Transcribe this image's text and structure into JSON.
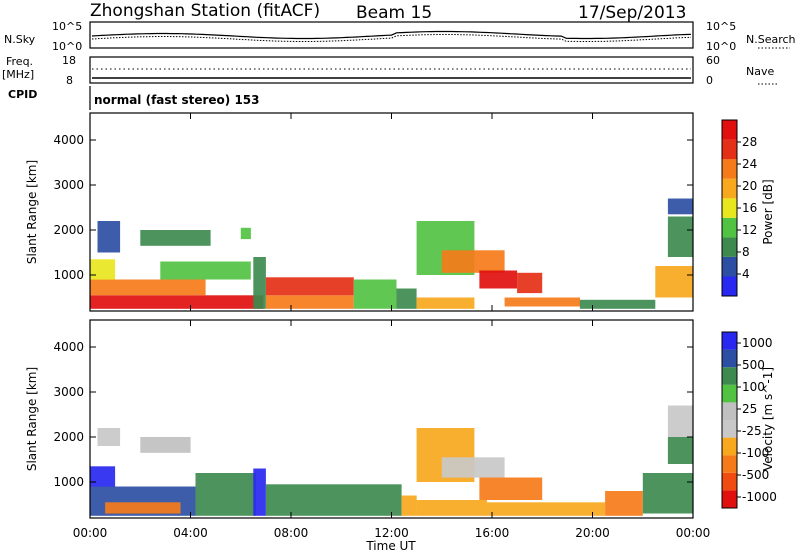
{
  "header": {
    "station": "Zhongshan Station (fitACF)",
    "beam": "Beam 15",
    "date": "17/Sep/2013"
  },
  "top_panels": {
    "nsky_label": "N.Sky",
    "nsky_ticks": [
      "10^5",
      "10^0"
    ],
    "nsearch_label": "N.Search",
    "nsearch_ticks": [
      "10^5",
      "10^0"
    ],
    "freq_label_line1": "Freq.",
    "freq_label_line2": "[MHz]",
    "freq_ticks": [
      "18",
      "8"
    ],
    "nave_label": "Nave",
    "nave_ticks": [
      "60",
      "0"
    ],
    "cpid_label": "CPID",
    "cpid_text": "normal (fast stereo) 153"
  },
  "x_axis": {
    "ticks": [
      "00:00",
      "04:00",
      "08:00",
      "12:00",
      "16:00",
      "20:00",
      "00:00"
    ],
    "tick_hours": [
      0,
      4,
      8,
      12,
      16,
      20,
      24
    ],
    "title": "Time UT"
  },
  "colors": {
    "power": [
      "#2828f0",
      "#2c4fa3",
      "#3d8a4f",
      "#52c243",
      "#e8e61e",
      "#f7a81d",
      "#f57b1a",
      "#e43016",
      "#e0100f"
    ],
    "velocity": [
      "#e0100f",
      "#f04b10",
      "#f57b1a",
      "#f7a81d",
      "#c8c8c8",
      "#c0c0c0",
      "#52c243",
      "#3d8a4f",
      "#2c4fa3",
      "#2828f0"
    ]
  },
  "chart_data": [
    {
      "type": "heatmap",
      "title": "",
      "xlabel": "",
      "ylabel": "Slant Range [km]",
      "xlim": [
        0,
        24
      ],
      "ylim": [
        200,
        4600
      ],
      "yticks": [
        1000,
        2000,
        3000,
        4000
      ],
      "colorbar_label": "Power [dB]",
      "colorbar_ticks": [
        "4",
        "8",
        "12",
        "16",
        "20",
        "24",
        "28"
      ],
      "regions": [
        {
          "t0": 0.0,
          "t1": 6.9,
          "r0": 250,
          "r1": 550,
          "level": 8
        },
        {
          "t0": 0.0,
          "t1": 4.6,
          "r0": 550,
          "r1": 900,
          "level": 6
        },
        {
          "t0": 0.0,
          "t1": 1.0,
          "r0": 900,
          "r1": 1350,
          "level": 4
        },
        {
          "t0": 2.8,
          "t1": 6.4,
          "r0": 900,
          "r1": 1300,
          "level": 3
        },
        {
          "t0": 6.5,
          "t1": 7.0,
          "r0": 250,
          "r1": 1400,
          "level": 2
        },
        {
          "t0": 7.0,
          "t1": 10.5,
          "r0": 250,
          "r1": 550,
          "level": 6
        },
        {
          "t0": 7.0,
          "t1": 10.5,
          "r0": 550,
          "r1": 950,
          "level": 7
        },
        {
          "t0": 10.5,
          "t1": 12.2,
          "r0": 250,
          "r1": 900,
          "level": 3
        },
        {
          "t0": 12.2,
          "t1": 13.0,
          "r0": 250,
          "r1": 700,
          "level": 2
        },
        {
          "t0": 13.0,
          "t1": 15.3,
          "r0": 250,
          "r1": 500,
          "level": 5
        },
        {
          "t0": 13.0,
          "t1": 15.3,
          "r0": 1000,
          "r1": 2200,
          "level": 3
        },
        {
          "t0": 14.0,
          "t1": 16.5,
          "r0": 1050,
          "r1": 1550,
          "level": 6
        },
        {
          "t0": 15.5,
          "t1": 17.0,
          "r0": 700,
          "r1": 1100,
          "level": 8
        },
        {
          "t0": 17.0,
          "t1": 18.0,
          "r0": 600,
          "r1": 1050,
          "level": 7
        },
        {
          "t0": 16.5,
          "t1": 19.5,
          "r0": 300,
          "r1": 500,
          "level": 6
        },
        {
          "t0": 19.5,
          "t1": 22.5,
          "r0": 250,
          "r1": 450,
          "level": 2
        },
        {
          "t0": 22.5,
          "t1": 24.0,
          "r0": 500,
          "r1": 1200,
          "level": 5
        },
        {
          "t0": 23.0,
          "t1": 24.0,
          "r0": 1400,
          "r1": 2300,
          "level": 2
        },
        {
          "t0": 23.0,
          "t1": 24.0,
          "r0": 2350,
          "r1": 2700,
          "level": 1
        },
        {
          "t0": 2.0,
          "t1": 4.8,
          "r0": 1650,
          "r1": 2000,
          "level": 2
        },
        {
          "t0": 6.0,
          "t1": 6.4,
          "r0": 1800,
          "r1": 2050,
          "level": 3
        },
        {
          "t0": 0.3,
          "t1": 1.2,
          "r0": 1500,
          "r1": 2200,
          "level": 1
        }
      ]
    },
    {
      "type": "heatmap",
      "title": "",
      "xlabel": "Time UT",
      "ylabel": "Slant Range [km]",
      "xlim": [
        0,
        24
      ],
      "ylim": [
        200,
        4600
      ],
      "yticks": [
        1000,
        2000,
        3000,
        4000
      ],
      "colorbar_label": "Velocity [m s^-1]",
      "colorbar_ticks": [
        "1000",
        "500",
        "100",
        "25",
        "-25",
        "-100",
        "-500",
        "-1000"
      ],
      "regions": [
        {
          "t0": 0.0,
          "t1": 4.2,
          "r0": 250,
          "r1": 900,
          "level": 8
        },
        {
          "t0": 0.0,
          "t1": 1.0,
          "r0": 900,
          "r1": 1350,
          "level": 9
        },
        {
          "t0": 0.6,
          "t1": 3.6,
          "r0": 300,
          "r1": 550,
          "level": 2
        },
        {
          "t0": 4.2,
          "t1": 6.6,
          "r0": 250,
          "r1": 1200,
          "level": 7
        },
        {
          "t0": 6.5,
          "t1": 7.0,
          "r0": 250,
          "r1": 1300,
          "level": 9
        },
        {
          "t0": 7.0,
          "t1": 12.4,
          "r0": 250,
          "r1": 950,
          "level": 7
        },
        {
          "t0": 12.4,
          "t1": 13.0,
          "r0": 250,
          "r1": 700,
          "level": 3
        },
        {
          "t0": 13.0,
          "t1": 15.3,
          "r0": 1000,
          "r1": 2200,
          "level": 3
        },
        {
          "t0": 14.0,
          "t1": 16.5,
          "r0": 1100,
          "r1": 1550,
          "level": 4
        },
        {
          "t0": 15.5,
          "t1": 18.0,
          "r0": 600,
          "r1": 1100,
          "level": 2
        },
        {
          "t0": 13.0,
          "t1": 15.8,
          "r0": 250,
          "r1": 600,
          "level": 3
        },
        {
          "t0": 15.8,
          "t1": 20.5,
          "r0": 250,
          "r1": 550,
          "level": 3
        },
        {
          "t0": 20.5,
          "t1": 22.0,
          "r0": 250,
          "r1": 800,
          "level": 2
        },
        {
          "t0": 22.0,
          "t1": 24.0,
          "r0": 300,
          "r1": 1200,
          "level": 7
        },
        {
          "t0": 23.0,
          "t1": 24.0,
          "r0": 2000,
          "r1": 2700,
          "level": 4
        },
        {
          "t0": 23.0,
          "t1": 24.0,
          "r0": 1400,
          "r1": 2000,
          "level": 7
        },
        {
          "t0": 2.0,
          "t1": 4.0,
          "r0": 1650,
          "r1": 2000,
          "level": 5
        },
        {
          "t0": 0.3,
          "t1": 1.2,
          "r0": 1800,
          "r1": 2200,
          "level": 4
        }
      ]
    }
  ]
}
